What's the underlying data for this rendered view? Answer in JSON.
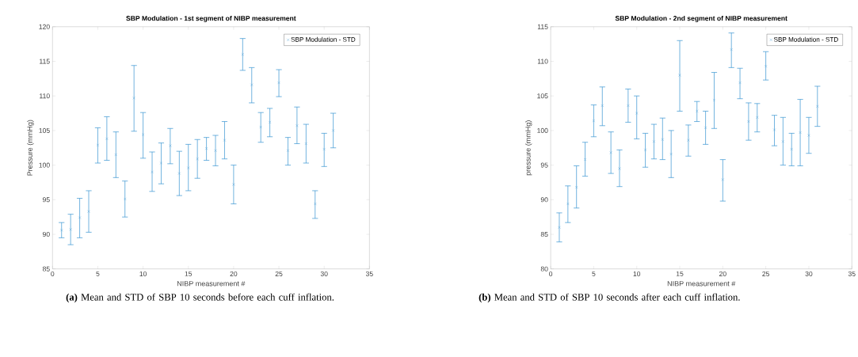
{
  "chart_data": [
    {
      "type": "scatter",
      "title": "SBP Modulation - 1st segment of NIBP measurement",
      "xlabel": "NIBP measurement #",
      "ylabel": "Pressure (mmHg)",
      "xlim": [
        0,
        35
      ],
      "xticks": [
        0,
        5,
        10,
        15,
        20,
        25,
        30,
        35
      ],
      "ylim": [
        85,
        120
      ],
      "yticks": [
        85,
        90,
        95,
        100,
        105,
        110,
        115,
        120
      ],
      "marker": "cross",
      "legend": "top right",
      "x": [
        1,
        2,
        3,
        4,
        5,
        6,
        7,
        8,
        9,
        10,
        11,
        12,
        13,
        14,
        15,
        16,
        17,
        18,
        19,
        20,
        21,
        22,
        23,
        24,
        25,
        26,
        27,
        28,
        29,
        30,
        31
      ],
      "series": [
        {
          "name": "SBP Modulation - STD",
          "color": "#3d97d3",
          "values": [
            90.6,
            90.7,
            92.4,
            93.3,
            102.9,
            103.8,
            101.5,
            95.1,
            109.7,
            104.4,
            99.0,
            100.3,
            102.8,
            98.8,
            99.6,
            100.9,
            102.4,
            102.1,
            103.6,
            97.2,
            116.0,
            111.6,
            105.5,
            106.2,
            111.9,
            102.1,
            105.7,
            103.1,
            94.4,
            102.3,
            105.0
          ],
          "errors": [
            [
              89.5,
              91.7
            ],
            [
              88.5,
              92.9
            ],
            [
              89.5,
              95.2
            ],
            [
              90.3,
              96.3
            ],
            [
              100.3,
              105.4
            ],
            [
              100.7,
              107.0
            ],
            [
              98.2,
              104.8
            ],
            [
              92.5,
              97.7
            ],
            [
              104.9,
              114.4
            ],
            [
              101.0,
              107.6
            ],
            [
              96.2,
              101.9
            ],
            [
              97.3,
              103.2
            ],
            [
              100.2,
              105.3
            ],
            [
              95.6,
              102.0
            ],
            [
              96.3,
              103.0
            ],
            [
              98.1,
              103.7
            ],
            [
              100.7,
              104.0
            ],
            [
              99.9,
              104.3
            ],
            [
              100.9,
              106.3
            ],
            [
              94.4,
              100.0
            ],
            [
              113.7,
              118.3
            ],
            [
              109.0,
              114.1
            ],
            [
              103.3,
              107.6
            ],
            [
              104.1,
              108.2
            ],
            [
              109.9,
              113.8
            ],
            [
              100.0,
              104.0
            ],
            [
              103.1,
              108.4
            ],
            [
              100.3,
              105.9
            ],
            [
              92.3,
              96.3
            ],
            [
              99.8,
              104.6
            ],
            [
              102.5,
              107.5
            ]
          ]
        }
      ],
      "annotations": [
        "**(a)** Mean and STD of SBP 10 seconds before each cuff inflation."
      ]
    },
    {
      "type": "scatter",
      "title": "SBP Modulation - 2nd segment of NIBP measurement",
      "xlabel": "NIBP measurement #",
      "ylabel": "pressure (mmHg)",
      "xlim": [
        0,
        35
      ],
      "xticks": [
        0,
        5,
        10,
        15,
        20,
        25,
        30,
        35
      ],
      "ylim": [
        80,
        115
      ],
      "yticks": [
        80,
        85,
        90,
        95,
        100,
        105,
        110,
        115
      ],
      "marker": "cross",
      "legend": "top right",
      "x": [
        1,
        2,
        3,
        4,
        5,
        6,
        7,
        8,
        9,
        10,
        11,
        12,
        13,
        14,
        15,
        16,
        17,
        18,
        19,
        20,
        21,
        22,
        23,
        24,
        25,
        26,
        27,
        28,
        29,
        30,
        31
      ],
      "series": [
        {
          "name": "SBP Modulation - STD",
          "color": "#3d97d3",
          "values": [
            86.0,
            89.4,
            91.8,
            95.8,
            101.4,
            103.6,
            96.8,
            94.5,
            103.6,
            102.5,
            97.2,
            98.4,
            98.7,
            96.6,
            108.0,
            98.6,
            102.8,
            100.4,
            104.4,
            92.9,
            111.7,
            106.9,
            101.3,
            101.9,
            109.3,
            100.1,
            98.4,
            97.3,
            99.7,
            99.3,
            103.5
          ],
          "errors": [
            [
              83.9,
              88.1
            ],
            [
              86.7,
              92.0
            ],
            [
              88.8,
              94.9
            ],
            [
              93.4,
              98.3
            ],
            [
              99.1,
              103.7
            ],
            [
              100.7,
              106.3
            ],
            [
              93.8,
              99.8
            ],
            [
              91.9,
              97.2
            ],
            [
              101.2,
              106.0
            ],
            [
              98.8,
              105.0
            ],
            [
              94.7,
              99.6
            ],
            [
              95.9,
              100.9
            ],
            [
              95.8,
              101.8
            ],
            [
              93.2,
              100.0
            ],
            [
              102.8,
              113.0
            ],
            [
              96.3,
              100.8
            ],
            [
              101.3,
              104.2
            ],
            [
              98.0,
              102.8
            ],
            [
              100.3,
              108.4
            ],
            [
              89.8,
              95.8
            ],
            [
              109.1,
              114.1
            ],
            [
              104.6,
              109.0
            ],
            [
              98.6,
              104.0
            ],
            [
              99.8,
              103.9
            ],
            [
              107.3,
              111.4
            ],
            [
              97.8,
              102.2
            ],
            [
              95.0,
              101.9
            ],
            [
              94.9,
              99.6
            ],
            [
              94.9,
              104.5
            ],
            [
              96.7,
              101.9
            ],
            [
              100.6,
              106.4
            ]
          ]
        }
      ],
      "annotations": [
        "**(b)** Mean and STD of SBP 10 seconds after each cuff inflation."
      ]
    }
  ]
}
